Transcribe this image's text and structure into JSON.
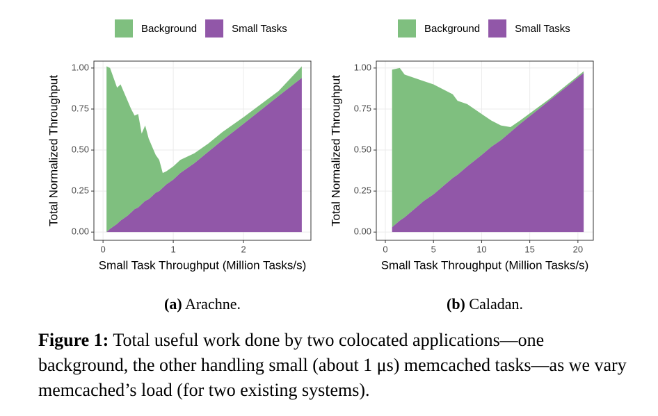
{
  "chart_data": [
    {
      "type": "area",
      "stacked": true,
      "caption_label": "(a)",
      "caption": "Arachne.",
      "xlabel": "Small Task Throughput (Million Tasks/s)",
      "ylabel": "Total Normalized Throughput",
      "x": [
        0.05,
        0.1,
        0.2,
        0.25,
        0.35,
        0.4,
        0.45,
        0.5,
        0.55,
        0.6,
        0.65,
        0.7,
        0.75,
        0.8,
        0.85,
        0.9,
        1.0,
        1.1,
        1.3,
        1.5,
        1.7,
        2.0,
        2.5,
        2.83
      ],
      "series": [
        {
          "name": "Background",
          "color": "#7fbf7f",
          "values": [
            1.01,
            0.98,
            0.83,
            0.83,
            0.7,
            0.63,
            0.57,
            0.57,
            0.43,
            0.46,
            0.37,
            0.3,
            0.23,
            0.19,
            0.09,
            0.08,
            0.08,
            0.08,
            0.06,
            0.05,
            0.05,
            0.04,
            0.03,
            0.07
          ]
        },
        {
          "name": "Small Tasks",
          "color": "#9157a8",
          "values": [
            0,
            0.02,
            0.05,
            0.07,
            0.1,
            0.12,
            0.14,
            0.15,
            0.17,
            0.19,
            0.2,
            0.22,
            0.24,
            0.25,
            0.27,
            0.29,
            0.32,
            0.36,
            0.42,
            0.49,
            0.56,
            0.66,
            0.83,
            0.94
          ]
        }
      ],
      "xlim": [
        -0.13,
        2.96
      ],
      "xticks": [
        0,
        1,
        2
      ],
      "ylim": [
        -0.05,
        1.042
      ],
      "yticks": [
        {
          "value": 0,
          "label": "0.00"
        },
        0.25,
        {
          "value": 0.5,
          "label": "0.50"
        },
        0.75,
        {
          "value": 1,
          "label": "1.00"
        }
      ],
      "grid": true,
      "legend": "top"
    },
    {
      "type": "area",
      "stacked": true,
      "caption_label": "(b)",
      "caption": "Caladan.",
      "xlabel": "Small Task Throughput (Million Tasks/s)",
      "ylabel": "Total Normalized Throughput",
      "x": [
        0.7,
        1.5,
        2,
        3,
        4,
        5,
        6,
        7,
        7.5,
        8.5,
        10,
        11,
        12,
        13,
        14,
        17,
        20.6
      ],
      "series": [
        {
          "name": "Background",
          "color": "#7fbf7f",
          "values": [
            0.96,
            0.93,
            0.87,
            0.8,
            0.73,
            0.67,
            0.59,
            0.51,
            0.45,
            0.38,
            0.25,
            0.16,
            0.09,
            0.03,
            0.02,
            0.01,
            0.01
          ]
        },
        {
          "name": "Small Tasks",
          "color": "#9157a8",
          "values": [
            0.03,
            0.07,
            0.09,
            0.14,
            0.19,
            0.23,
            0.28,
            0.33,
            0.35,
            0.4,
            0.47,
            0.52,
            0.56,
            0.61,
            0.66,
            0.8,
            0.97
          ]
        }
      ],
      "xlim": [
        -0.94,
        21.6
      ],
      "xticks": [
        0,
        5,
        10,
        15,
        20
      ],
      "ylim": [
        -0.05,
        1.042
      ],
      "yticks": [
        {
          "value": 0,
          "label": "0.00"
        },
        0.25,
        {
          "value": 0.5,
          "label": "0.50"
        },
        0.75,
        {
          "value": 1,
          "label": "1.00"
        }
      ],
      "grid": true,
      "legend": "top"
    }
  ],
  "figure": {
    "label": "Figure 1:",
    "text": "Total useful work done by two colocated applications—one background, the other handling small (about 1 μs) memcached tasks—as we vary memcached’s load (for two existing systems)."
  }
}
